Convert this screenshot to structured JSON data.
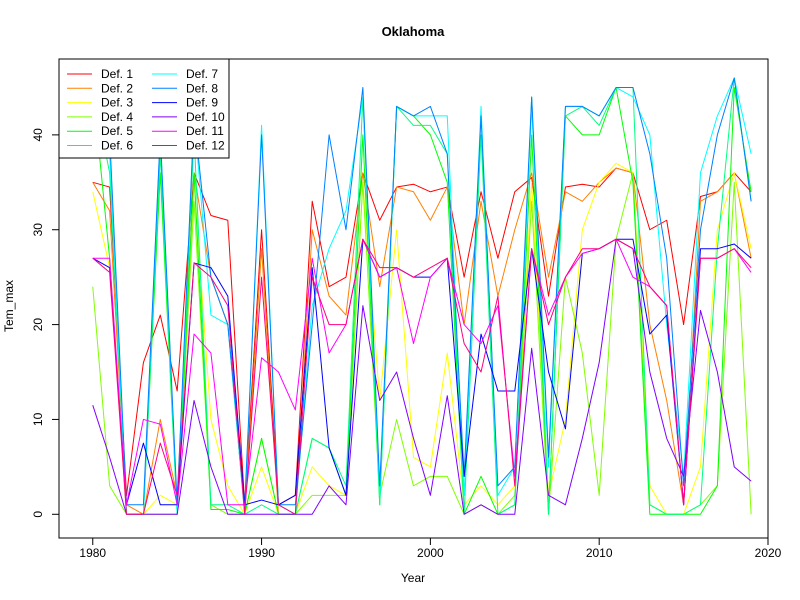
{
  "chart_data": {
    "type": "line",
    "title": "Oklahoma",
    "xlabel": "Year",
    "ylabel": "Tem_max",
    "xlim": [
      1978,
      2020
    ],
    "ylim": [
      -2.5,
      48
    ],
    "xticks": [
      1980,
      1990,
      2000,
      2010,
      2020
    ],
    "yticks": [
      0,
      10,
      20,
      30,
      40
    ],
    "grid": false,
    "legend_position": "top-left",
    "x": [
      1980,
      1981,
      1982,
      1983,
      1984,
      1985,
      1986,
      1987,
      1988,
      1989,
      1990,
      1991,
      1992,
      1993,
      1994,
      1995,
      1996,
      1997,
      1998,
      1999,
      2000,
      2001,
      2002,
      2003,
      2004,
      2005,
      2006,
      2007,
      2008,
      2009,
      2010,
      2011,
      2012,
      2013,
      2014,
      2015,
      2016,
      2017,
      2018,
      2019
    ],
    "series": [
      {
        "name": "Def. 1",
        "color": "#FF0000",
        "values": [
          35,
          34.5,
          2,
          16,
          21,
          13,
          36,
          31.5,
          31,
          1,
          30,
          1,
          2,
          33,
          24,
          25,
          36,
          31,
          34.5,
          34.8,
          34,
          34.5,
          25,
          34,
          27,
          34,
          35.5,
          23,
          34.5,
          34.8,
          34.5,
          36.5,
          36,
          30,
          31,
          20,
          33.5,
          34,
          36,
          34
        ]
      },
      {
        "name": "Def. 2",
        "color": "#FF8000",
        "values": [
          35,
          32,
          1,
          0,
          10,
          2,
          36,
          25,
          20,
          0,
          28,
          0,
          0,
          30,
          23,
          21,
          36,
          24,
          34.5,
          34,
          31,
          34.5,
          20,
          33,
          23,
          30,
          36,
          25,
          34,
          33,
          35,
          36.5,
          36,
          20,
          12,
          1,
          33,
          34,
          36,
          27
        ]
      },
      {
        "name": "Def. 3",
        "color": "#FFFF00",
        "values": [
          34,
          26,
          0,
          0,
          2,
          1,
          35,
          10,
          3,
          0,
          5,
          0,
          0,
          5,
          3,
          2,
          35,
          12,
          30,
          6,
          5,
          17,
          1,
          3,
          1,
          3,
          35,
          2,
          10,
          30,
          35,
          37,
          36,
          3,
          0,
          0,
          5,
          30,
          36,
          28
        ]
      },
      {
        "name": "Def. 4",
        "color": "#80FF00",
        "values": [
          24,
          3,
          0,
          0,
          0,
          0,
          33,
          1,
          0,
          0,
          8,
          0,
          0,
          2,
          2,
          2,
          35,
          2,
          10,
          3,
          4,
          4,
          0,
          1,
          0,
          2,
          33,
          0,
          25,
          17,
          2,
          29,
          36,
          1,
          0,
          0,
          1,
          3,
          35,
          0
        ]
      },
      {
        "name": "Def. 5",
        "color": "#00FF00",
        "values": [
          45,
          27,
          0,
          0,
          36,
          0,
          36,
          0.5,
          0.5,
          0,
          8,
          0,
          0,
          8,
          7,
          2,
          40,
          1,
          43,
          42,
          40,
          35,
          0,
          4,
          0,
          1,
          40,
          0,
          42,
          40,
          40,
          45,
          35,
          0,
          0,
          0,
          0,
          3,
          45,
          34
        ]
      },
      {
        "name": "Def. 6",
        "color": "#00FF80",
        "values": [
          45,
          36,
          0,
          0,
          38,
          0,
          40,
          1,
          1,
          0,
          1,
          0,
          0,
          8,
          7,
          3,
          44,
          1,
          43,
          41,
          41,
          38,
          0,
          40,
          0,
          1,
          44,
          0,
          42,
          43,
          41,
          45,
          45,
          1,
          0,
          0,
          1,
          28,
          46,
          33
        ]
      },
      {
        "name": "Def. 7",
        "color": "#00FFFF",
        "values": [
          45,
          38,
          0,
          0,
          40,
          0,
          42,
          21,
          20,
          0,
          41,
          1,
          0,
          22,
          28,
          32,
          44,
          2,
          43,
          42,
          42,
          42,
          2,
          43,
          2,
          5,
          43,
          5,
          43,
          43,
          42,
          45,
          44,
          40,
          20,
          4,
          36,
          42,
          46,
          38
        ]
      },
      {
        "name": "Def. 8",
        "color": "#0080FF",
        "values": [
          45,
          40,
          1,
          1,
          40,
          1,
          42,
          25,
          20,
          1,
          40,
          1,
          1,
          20,
          40,
          30,
          45,
          3,
          43,
          42,
          43,
          38,
          4,
          42,
          3,
          5,
          44,
          6,
          43,
          43,
          42,
          45,
          45,
          38,
          27,
          3,
          30,
          40,
          46,
          33
        ]
      },
      {
        "name": "Def. 9",
        "color": "#0000FF",
        "values": [
          27,
          26,
          1,
          7.5,
          1,
          1,
          26.5,
          26,
          23,
          1,
          1.5,
          1,
          2,
          26,
          7,
          2,
          29,
          25,
          26,
          25,
          25,
          27,
          4,
          19,
          13,
          13,
          28,
          15,
          9,
          27.5,
          28,
          29,
          29,
          19,
          21,
          1,
          28,
          28,
          28.5,
          27
        ]
      },
      {
        "name": "Def. 10",
        "color": "#8000FF",
        "values": [
          11.5,
          6,
          0,
          0,
          0,
          0,
          12,
          5,
          0,
          0,
          0,
          0,
          0,
          0,
          3,
          1,
          22,
          12,
          15,
          8,
          2,
          12.5,
          0,
          1,
          0,
          0,
          17.5,
          2,
          1,
          8,
          16,
          29,
          28,
          15,
          8,
          4,
          21.5,
          15,
          5,
          3.5
        ]
      },
      {
        "name": "Def. 11",
        "color": "#FF00FF",
        "values": [
          27,
          27,
          1,
          10,
          9.5,
          1,
          19,
          17,
          1,
          1,
          16.5,
          15,
          11,
          27,
          17,
          20,
          29,
          25,
          26,
          18,
          25,
          27,
          20,
          18,
          22,
          4,
          28,
          21,
          25,
          27.5,
          28,
          29,
          25,
          24,
          22,
          1,
          27,
          27,
          28,
          25.5
        ]
      },
      {
        "name": "Def. 12",
        "color": "#FF0080",
        "values": [
          27,
          25.5,
          0,
          0,
          7.5,
          2,
          26.5,
          25,
          22,
          0,
          25,
          1,
          0,
          25,
          20,
          20,
          29,
          26,
          26,
          25,
          26,
          27,
          18,
          15,
          23,
          3,
          28,
          20,
          25,
          28,
          28,
          29,
          28,
          24,
          22,
          1,
          27,
          27,
          28,
          26
        ]
      }
    ]
  }
}
